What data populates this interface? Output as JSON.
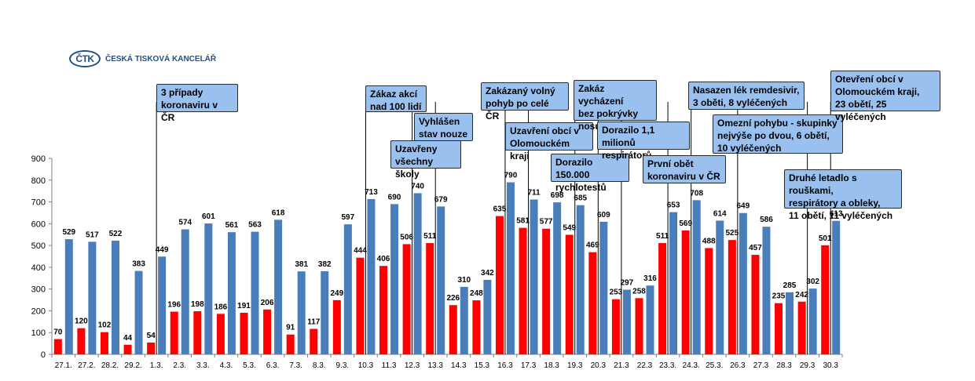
{
  "logo": {
    "mark": "ČTK",
    "name": "ČESKÁ TISKOVÁ KANCELÁŘ"
  },
  "chart_data": {
    "type": "bar",
    "categories": [
      "27.1.",
      "27.2.",
      "28.2.",
      "29.2.",
      "1.3.",
      "2.3.",
      "3.3.",
      "4.3.",
      "5.3.",
      "6.3.",
      "7.3.",
      "8.3.",
      "9.3.",
      "10.3",
      "11.3",
      "12.3",
      "13.3",
      "14.3",
      "15.3",
      "16.3",
      "17.3",
      "18.3",
      "19.3",
      "20.3",
      "21.3",
      "22.3",
      "23.3.",
      "24.3.",
      "25.3.",
      "26.3",
      "27.3",
      "28.3",
      "29.3",
      "30.3"
    ],
    "series": [
      {
        "color": "#ff0000",
        "values": [
          70,
          120,
          102,
          44,
          54,
          196,
          198,
          186,
          191,
          206,
          91,
          117,
          249,
          444,
          406,
          506,
          511,
          226,
          248,
          635,
          581,
          577,
          549,
          469,
          253,
          258,
          511,
          569,
          488,
          525,
          457,
          235,
          242,
          501
        ]
      },
      {
        "color": "#4a7ebb",
        "values": [
          529,
          517,
          522,
          383,
          449,
          574,
          601,
          561,
          563,
          618,
          381,
          382,
          597,
          713,
          690,
          740,
          679,
          310,
          342,
          790,
          711,
          698,
          685,
          609,
          297,
          316,
          653,
          708,
          614,
          649,
          586,
          285,
          302,
          613
        ]
      }
    ],
    "ylim": [
      0,
      900
    ],
    "yticks": [
      0,
      100,
      200,
      300,
      400,
      500,
      600,
      700,
      800,
      900
    ],
    "grid": false,
    "annotations": [
      {
        "index": 4,
        "text": "3 případy\nkoronaviru v ČR"
      },
      {
        "index": 13,
        "text": "Zákaz akcí\nnad 100 lidí"
      },
      {
        "index": 15,
        "text": "Uzavřeny\nvšechny školy"
      },
      {
        "index": 16,
        "text": "Vyhlášen\nstav nouze"
      },
      {
        "index": 19,
        "text": "Zakázaný volný\npohyb po celé ČR"
      },
      {
        "index": 20,
        "text": "Uzavření obcí v\nOlomouckém kraji"
      },
      {
        "index": 22,
        "text": "Dorazilo 150.000\nrychlotestů"
      },
      {
        "index": 23,
        "text": "Zakáz vycházení\nbez pokrývky\nnosu a úst"
      },
      {
        "index": 24,
        "text": "Dorazilo 1,1\nmilionů respirátorů"
      },
      {
        "index": 26,
        "text": "První obět\nkoronaviru v ČR"
      },
      {
        "index": 27,
        "text": "Nasazen lék remdesivir,\n3 oběti, 8 vyléčených"
      },
      {
        "index": 29,
        "text": "Omezní pohybu - skupinky\nnejvýše po dvou, 6 obětí,\n10 vyléčených"
      },
      {
        "index": 33,
        "text": "Otevření obcí v\nOlomouckém kraji,\n23 obětí, 25 vyléčených"
      },
      {
        "index": 32,
        "text": "Druhé letadlo s rouškami,\nrespirátory a obleky,\n11 obětí, 11 vyléčených"
      }
    ]
  }
}
